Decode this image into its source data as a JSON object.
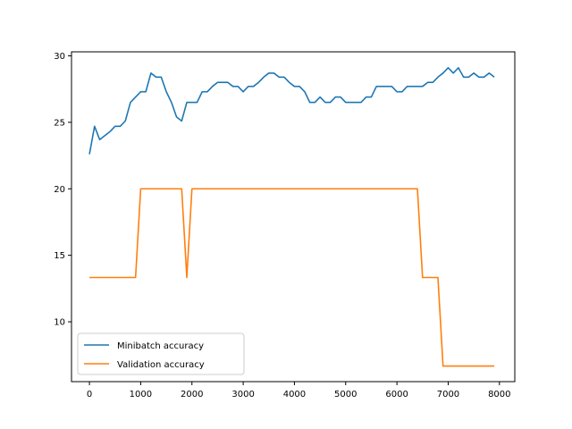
{
  "chart_data": {
    "type": "line",
    "title": "",
    "xlabel": "",
    "ylabel": "",
    "xlim": [
      -350,
      8300
    ],
    "ylim": [
      5.5,
      30.3
    ],
    "xticks": [
      0,
      1000,
      2000,
      3000,
      4000,
      5000,
      6000,
      7000,
      8000
    ],
    "yticks": [
      10,
      15,
      20,
      25,
      30
    ],
    "grid": false,
    "legend": "lower-left",
    "series": [
      {
        "name": "Minibatch accuracy",
        "color": "#1f77b4",
        "x": [
          0,
          100,
          200,
          300,
          400,
          500,
          600,
          700,
          800,
          900,
          1000,
          1100,
          1200,
          1300,
          1400,
          1500,
          1600,
          1700,
          1800,
          1900,
          2000,
          2100,
          2200,
          2300,
          2400,
          2500,
          2600,
          2700,
          2800,
          2900,
          3000,
          3100,
          3200,
          3300,
          3400,
          3500,
          3600,
          3700,
          3800,
          3900,
          4000,
          4100,
          4200,
          4300,
          4400,
          4500,
          4600,
          4700,
          4800,
          4900,
          5000,
          5100,
          5200,
          5300,
          5400,
          5500,
          5600,
          5700,
          5800,
          5900,
          6000,
          6100,
          6200,
          6300,
          6400,
          6500,
          6600,
          6700,
          6800,
          6900,
          7000,
          7100,
          7200,
          7300,
          7400,
          7500,
          7600,
          7700,
          7800,
          7900
        ],
        "y": [
          22.6,
          24.7,
          23.7,
          24.0,
          24.3,
          24.7,
          24.7,
          25.1,
          26.5,
          26.9,
          27.3,
          27.3,
          28.7,
          28.4,
          28.4,
          27.3,
          26.5,
          25.4,
          25.1,
          26.5,
          26.5,
          26.5,
          27.3,
          27.3,
          27.7,
          28.0,
          28.0,
          28.0,
          27.7,
          27.7,
          27.3,
          27.7,
          27.7,
          28.0,
          28.4,
          28.7,
          28.7,
          28.4,
          28.4,
          28.0,
          27.7,
          27.7,
          27.3,
          26.5,
          26.5,
          26.9,
          26.5,
          26.5,
          26.9,
          26.9,
          26.5,
          26.5,
          26.5,
          26.5,
          26.9,
          26.9,
          27.7,
          27.7,
          27.7,
          27.7,
          27.3,
          27.3,
          27.7,
          27.7,
          27.7,
          27.7,
          28.0,
          28.0,
          28.4,
          28.7,
          29.1,
          28.7,
          29.1,
          28.4,
          28.4,
          28.7,
          28.4,
          28.4,
          28.7,
          28.4
        ]
      },
      {
        "name": "Validation accuracy",
        "color": "#ff7f0e",
        "x": [
          0,
          100,
          200,
          300,
          400,
          500,
          600,
          700,
          800,
          900,
          1000,
          1100,
          1200,
          1300,
          1400,
          1500,
          1600,
          1700,
          1800,
          1900,
          2000,
          2100,
          2200,
          2300,
          2400,
          2500,
          2600,
          2700,
          2800,
          2900,
          3000,
          3100,
          3200,
          3300,
          3400,
          3500,
          3600,
          3700,
          3800,
          3900,
          4000,
          4100,
          4200,
          4300,
          4400,
          4500,
          4600,
          4700,
          4800,
          4900,
          5000,
          5100,
          5200,
          5300,
          5400,
          5500,
          5600,
          5700,
          5800,
          5900,
          6000,
          6100,
          6200,
          6300,
          6400,
          6500,
          6600,
          6700,
          6800,
          6900,
          7000,
          7100,
          7200,
          7300,
          7400,
          7500,
          7600,
          7700,
          7800,
          7900
        ],
        "y": [
          13.33,
          13.33,
          13.33,
          13.33,
          13.33,
          13.33,
          13.33,
          13.33,
          13.33,
          13.33,
          20.0,
          20.0,
          20.0,
          20.0,
          20.0,
          20.0,
          20.0,
          20.0,
          20.0,
          13.33,
          20.0,
          20.0,
          20.0,
          20.0,
          20.0,
          20.0,
          20.0,
          20.0,
          20.0,
          20.0,
          20.0,
          20.0,
          20.0,
          20.0,
          20.0,
          20.0,
          20.0,
          20.0,
          20.0,
          20.0,
          20.0,
          20.0,
          20.0,
          20.0,
          20.0,
          20.0,
          20.0,
          20.0,
          20.0,
          20.0,
          20.0,
          20.0,
          20.0,
          20.0,
          20.0,
          20.0,
          20.0,
          20.0,
          20.0,
          20.0,
          20.0,
          20.0,
          20.0,
          20.0,
          20.0,
          13.33,
          13.33,
          13.33,
          13.33,
          6.67,
          6.67,
          6.67,
          6.67,
          6.67,
          6.67,
          6.67,
          6.67,
          6.67,
          6.67,
          6.67
        ]
      }
    ]
  }
}
